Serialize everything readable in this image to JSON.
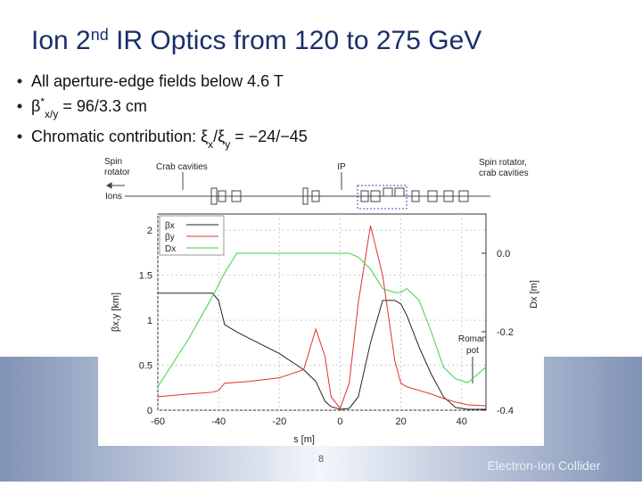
{
  "title": [
    "Ion 2",
    "nd",
    " IR Optics from 120 to 275 GeV"
  ],
  "bullets": [
    [
      {
        "text": "All aperture-edge fields below 4.6 T"
      }
    ],
    [
      {
        "text": "β"
      },
      {
        "text": "*",
        "pos": "sup"
      },
      {
        "text": "x/y",
        "pos": "sub"
      },
      {
        "text": " = 96/3.3 cm"
      }
    ],
    [
      {
        "text": "Chromatic contribution: "
      },
      {
        "text": "ξ"
      },
      {
        "text": "x",
        "pos": "sub"
      },
      {
        "text": "/ξ"
      },
      {
        "text": "y",
        "pos": "sub"
      },
      {
        "text": " = −24/−45"
      }
    ]
  ],
  "schematic_labels": [
    [
      "Spin",
      "rotator"
    ],
    [
      "Crab cavities"
    ],
    [
      "IP"
    ],
    [
      "Ions"
    ],
    [
      "Spin rotator,",
      "crab cavities"
    ]
  ],
  "chart_data": {
    "type": "line",
    "x_label": "s [m]",
    "y_label": "βx,y [km]",
    "y2_label": "Dx [m]",
    "annotation": [
      "Roman",
      "pot"
    ],
    "x": [
      -60,
      -50,
      -42,
      -40,
      -38,
      -34,
      -30,
      -20,
      -12,
      -8,
      -5,
      -3,
      0,
      3,
      6,
      10,
      14,
      18,
      20,
      22,
      26,
      30,
      34,
      38,
      42,
      48
    ],
    "series": [
      {
        "name": "βx",
        "color": "#222222",
        "values": [
          1.3,
          1.3,
          1.3,
          1.22,
          0.95,
          0.87,
          0.8,
          0.63,
          0.45,
          0.32,
          0.1,
          0.04,
          0.01,
          0.02,
          0.15,
          0.75,
          1.22,
          1.22,
          1.18,
          1.05,
          0.7,
          0.4,
          0.15,
          0.03,
          0.01,
          0.01
        ]
      },
      {
        "name": "βy",
        "color": "#e03030",
        "values": [
          0.15,
          0.18,
          0.2,
          0.22,
          0.3,
          0.31,
          0.32,
          0.36,
          0.45,
          0.9,
          0.6,
          0.15,
          0.02,
          0.3,
          1.2,
          2.05,
          1.5,
          0.55,
          0.3,
          0.26,
          0.22,
          0.18,
          0.13,
          0.09,
          0.06,
          0.05
        ]
      },
      {
        "name": "Dx",
        "color": "#40d040",
        "axis": "y2",
        "values": [
          -0.34,
          -0.22,
          -0.11,
          -0.08,
          -0.05,
          0,
          0,
          0,
          0,
          0,
          0,
          0,
          0,
          0,
          -0.01,
          -0.04,
          -0.09,
          -0.1,
          -0.1,
          -0.09,
          -0.12,
          -0.2,
          -0.29,
          -0.32,
          -0.33,
          -0.29
        ]
      }
    ],
    "xlim": [
      -60,
      48
    ],
    "xticks": [
      -60,
      -40,
      -20,
      0,
      20,
      40
    ],
    "ylim": [
      0,
      2.18
    ],
    "yticks": [
      0,
      0.5,
      1,
      1.5,
      2
    ],
    "y2lim": [
      -0.4,
      0.1
    ],
    "y2ticks": [
      -0.4,
      -0.2,
      {
        "value": 0,
        "label": "0.0"
      }
    ],
    "grid": true
  },
  "footer": {
    "page": "8",
    "brand": "Electron-Ion Collider"
  }
}
